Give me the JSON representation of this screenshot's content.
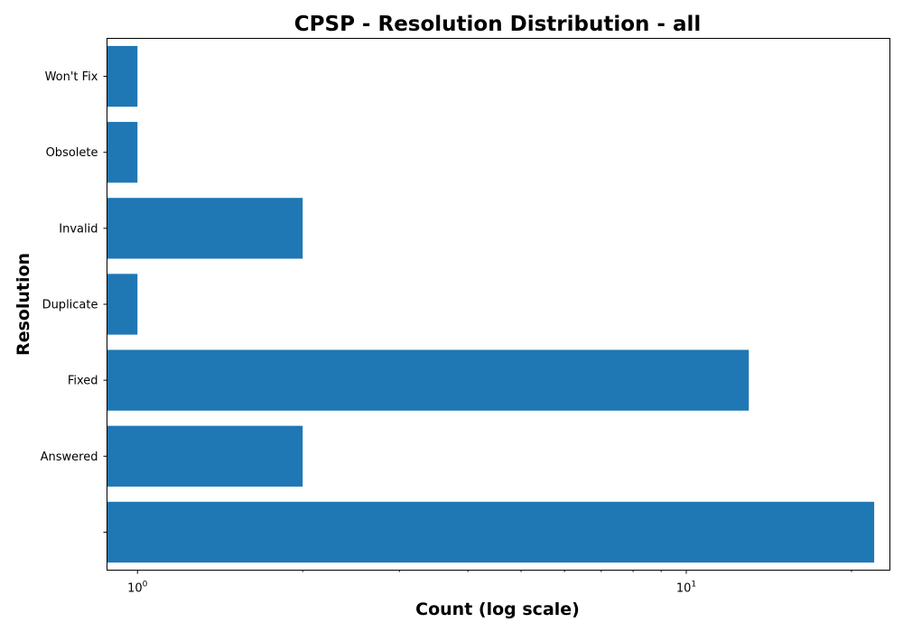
{
  "chart_data": {
    "type": "bar",
    "orientation": "horizontal",
    "title": "CPSP - Resolution Distribution - all",
    "xlabel": "Count (log scale)",
    "ylabel": "Resolution",
    "x_scale": "log",
    "xlim": [
      0.88,
      23.5
    ],
    "x_ticks": [
      {
        "base": "10",
        "exp": "0",
        "value": 1
      },
      {
        "base": "10",
        "exp": "1",
        "value": 10
      }
    ],
    "categories": [
      "",
      "Answered",
      "Fixed",
      "Duplicate",
      "Invalid",
      "Obsolete",
      "Won't Fix"
    ],
    "values": [
      22,
      2,
      13,
      1,
      2,
      1,
      1
    ],
    "bar_color": "#1f77b4",
    "grid": false,
    "legend": "none"
  }
}
